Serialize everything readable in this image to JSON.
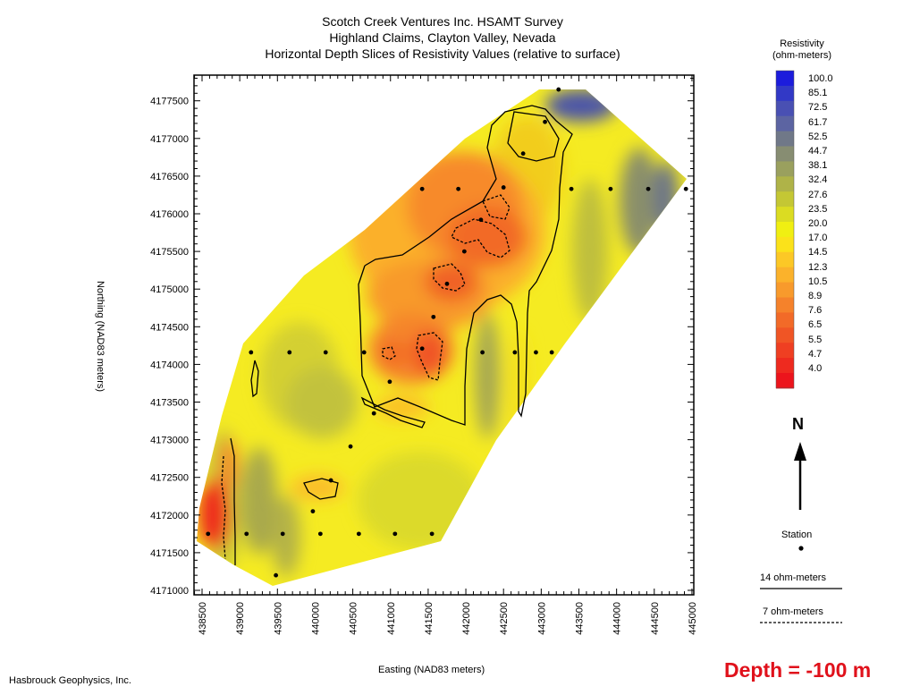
{
  "title_lines": [
    "Scotch Creek Ventures Inc. HSAMT Survey",
    "Highland Claims, Clayton Valley, Nevada",
    "Horizontal Depth Slices of Resistivity Values (relative to surface)"
  ],
  "axes": {
    "x_label": "Easting (NAD83 meters)",
    "y_label": "Northing (NAD83 meters)",
    "x_ticks": [
      "438500",
      "439000",
      "439500",
      "440000",
      "440500",
      "441000",
      "441500",
      "442000",
      "442500",
      "443000",
      "443500",
      "444000",
      "444500",
      "445000"
    ],
    "y_ticks": [
      "4177500",
      "4177000",
      "4176500",
      "4176000",
      "4175500",
      "4175000",
      "4174500",
      "4174000",
      "4173500",
      "4173000",
      "4172500",
      "4172000",
      "4171500",
      "4171000"
    ],
    "x_range": [
      438400,
      445100
    ],
    "y_range": [
      4170900,
      4178050
    ]
  },
  "legend": {
    "title_line1": "Resistivity",
    "title_line2": "(ohm-meters)",
    "labels": [
      "100.0",
      "85.1",
      "72.5",
      "61.7",
      "52.5",
      "44.7",
      "38.1",
      "32.4",
      "27.6",
      "23.5",
      "20.0",
      "17.0",
      "14.5",
      "12.3",
      "10.5",
      "8.9",
      "7.6",
      "6.5",
      "5.5",
      "4.7",
      "4.0"
    ],
    "colors": [
      "#1c1cdc",
      "#3239c6",
      "#4950b3",
      "#5c64a2",
      "#707888",
      "#878d72",
      "#9aa05e",
      "#afb348",
      "#c4c734",
      "#dbdc22",
      "#f0ef12",
      "#fbe21a",
      "#fcc826",
      "#fbb22b",
      "#f89a2c",
      "#f5822b",
      "#f26a28",
      "#f05525",
      "#ef3f22",
      "#ee2a1f",
      "#ec141c"
    ]
  },
  "north_label": "N",
  "station_label": "Station",
  "contour_14_label": "14 ohm-meters",
  "contour_7_label": "7 ohm-meters",
  "credit": "Hasbrouck Geophysics, Inc.",
  "depth_label": "Depth = -100 m",
  "stations": [
    [
      443230,
      4177650
    ],
    [
      443050,
      4177220
    ],
    [
      442760,
      4176800
    ],
    [
      442500,
      4176350
    ],
    [
      442200,
      4175920
    ],
    [
      441900,
      4176330
    ],
    [
      441420,
      4176330
    ],
    [
      441980,
      4175500
    ],
    [
      441750,
      4175070
    ],
    [
      441570,
      4174630
    ],
    [
      442220,
      4174160
    ],
    [
      442650,
      4174160
    ],
    [
      442930,
      4174160
    ],
    [
      443140,
      4174160
    ],
    [
      443400,
      4176330
    ],
    [
      443920,
      4176330
    ],
    [
      444420,
      4176330
    ],
    [
      444920,
      4176330
    ],
    [
      441420,
      4174210
    ],
    [
      440650,
      4174160
    ],
    [
      440140,
      4174160
    ],
    [
      439660,
      4174160
    ],
    [
      439150,
      4174160
    ],
    [
      440990,
      4173770
    ],
    [
      440780,
      4173350
    ],
    [
      440470,
      4172910
    ],
    [
      440210,
      4172460
    ],
    [
      439970,
      4172050
    ],
    [
      439090,
      4171750
    ],
    [
      439570,
      4171750
    ],
    [
      440070,
      4171750
    ],
    [
      440580,
      4171750
    ],
    [
      441060,
      4171750
    ],
    [
      441550,
      4171750
    ],
    [
      438580,
      4171750
    ],
    [
      439480,
      4171200
    ]
  ]
}
